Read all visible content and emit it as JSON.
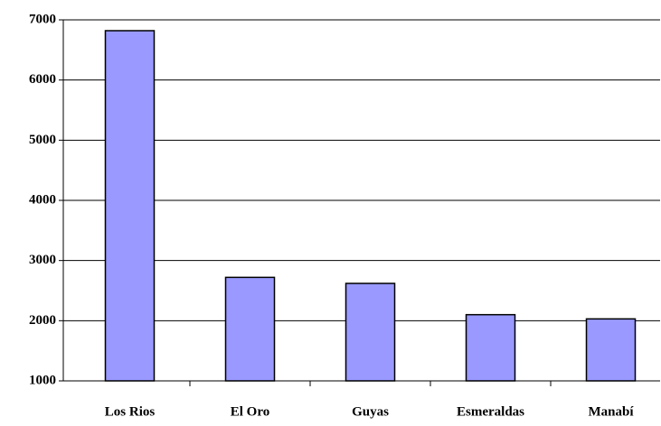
{
  "chart_data": {
    "type": "bar",
    "categories": [
      "Los Rios",
      "El Oro",
      "Guyas",
      "Esmeraldas",
      "Manabí"
    ],
    "values": [
      6820,
      2720,
      2620,
      2100,
      2030
    ],
    "color": "#9999ff",
    "ylim": [
      1000,
      7000
    ],
    "yticks": [
      1000,
      2000,
      3000,
      4000,
      5000,
      6000,
      7000
    ],
    "grid": true
  }
}
